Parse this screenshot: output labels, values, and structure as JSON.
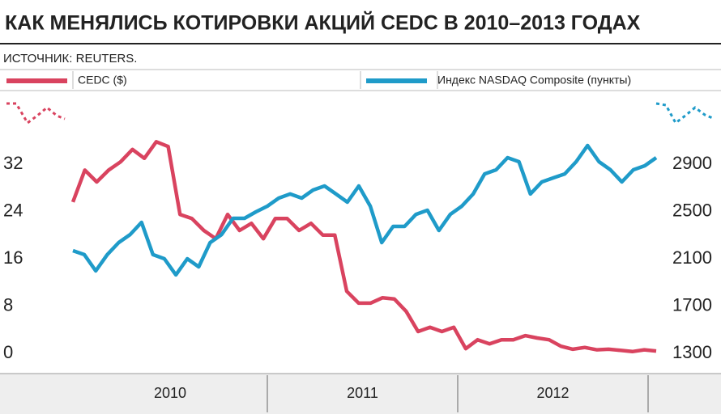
{
  "chart_data": {
    "type": "line",
    "title": "КАК МЕНЯЛИСЬ КОТИРОВКИ АКЦИЙ CEDC В 2010–2013  ГОДАХ",
    "subtitle": "ИСТОЧНИК: REUTERS.",
    "periods": [
      "2010",
      "2011",
      "2012"
    ],
    "ylim": [
      0,
      40
    ],
    "yticks": [
      0,
      8,
      16,
      24,
      32
    ],
    "y2lim": [
      1300,
      3300
    ],
    "y2ticks": [
      1300,
      1700,
      2100,
      2500,
      2900
    ],
    "series": [
      {
        "name": "CEDC ($)",
        "color": "#d9435f",
        "values": [
          25.6,
          31,
          29,
          31,
          32.4,
          34.5,
          33,
          35.8,
          35,
          23.5,
          22.8,
          20.8,
          19.4,
          23.5,
          20.8,
          22,
          19.4,
          22.8,
          22.8,
          20.8,
          22,
          20,
          20,
          10.5,
          8.5,
          8.5,
          9.4,
          9.2,
          7.1,
          3.7,
          4.4,
          3.7,
          4.4,
          0.8,
          2.3,
          1.6,
          2.3,
          2.3,
          3,
          2.6,
          2.3,
          1.2,
          0.7,
          1,
          0.6,
          0.7,
          0.5,
          0.3,
          0.6,
          0.4
        ]
      },
      {
        "name": "Индекс NASDAQ Composite (пункты)",
        "color": "#1f9bc9",
        "axis": "y2",
        "values": [
          2169,
          2135,
          1998,
          2135,
          2237,
          2305,
          2408,
          2135,
          2100,
          1964,
          2100,
          2032,
          2237,
          2305,
          2442,
          2442,
          2497,
          2545,
          2613,
          2648,
          2613,
          2682,
          2716,
          2648,
          2579,
          2716,
          2545,
          2237,
          2374,
          2374,
          2476,
          2511,
          2340,
          2476,
          2545,
          2648,
          2818,
          2853,
          2955,
          2921,
          2648,
          2750,
          2784,
          2818,
          2921,
          3058,
          2921,
          2853,
          2750,
          2853,
          2887,
          2955
        ]
      }
    ]
  }
}
